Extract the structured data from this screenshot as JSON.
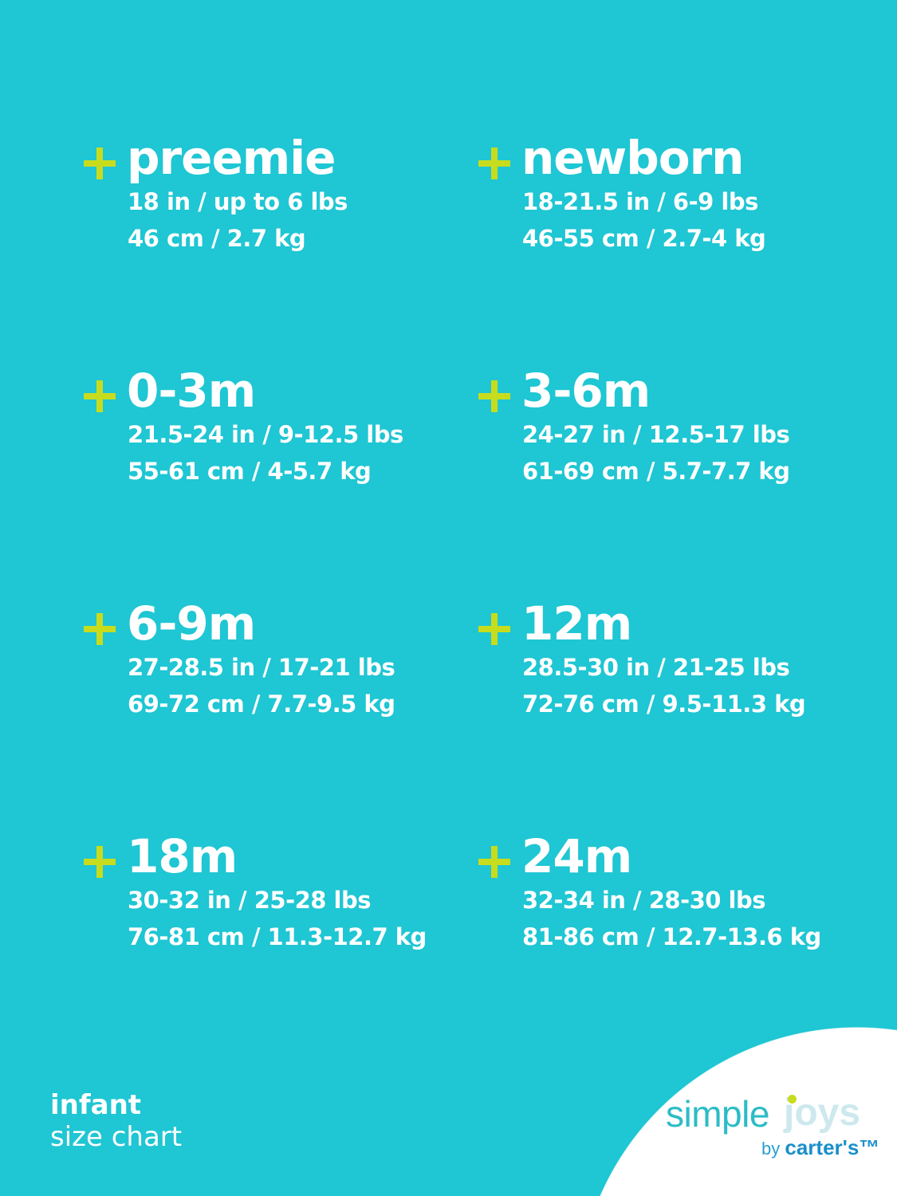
{
  "colors": {
    "background": "#1fc6d3",
    "accent": "#c8dc1e",
    "text": "#ffffff"
  },
  "sizes": [
    {
      "name": "preemie",
      "imperial": "18 in / up to 6 lbs",
      "metric": "46 cm / 2.7 kg"
    },
    {
      "name": "newborn",
      "imperial": "18-21.5 in / 6-9 lbs",
      "metric": "46-55 cm / 2.7-4 kg"
    },
    {
      "name": "0-3m",
      "imperial": "21.5-24 in / 9-12.5 lbs",
      "metric": "55-61 cm / 4-5.7 kg"
    },
    {
      "name": "3-6m",
      "imperial": "24-27 in / 12.5-17 lbs",
      "metric": "61-69 cm / 5.7-7.7 kg"
    },
    {
      "name": "6-9m",
      "imperial": "27-28.5 in / 17-21 lbs",
      "metric": "69-72 cm / 7.7-9.5 kg"
    },
    {
      "name": "12m",
      "imperial": "28.5-30 in / 21-25 lbs",
      "metric": "72-76 cm / 9.5-11.3 kg"
    },
    {
      "name": "18m",
      "imperial": "30-32 in / 25-28 lbs",
      "metric": "76-81 cm / 11.3-12.7 kg"
    },
    {
      "name": "24m",
      "imperial": "32-34 in / 28-30 lbs",
      "metric": "81-86 cm / 12.7-13.6 kg"
    }
  ],
  "footer": {
    "line1": "infant",
    "line2": "size chart"
  },
  "logo": {
    "simple": "simple",
    "joys": "joys",
    "by": "by",
    "brand": "carter's™"
  }
}
